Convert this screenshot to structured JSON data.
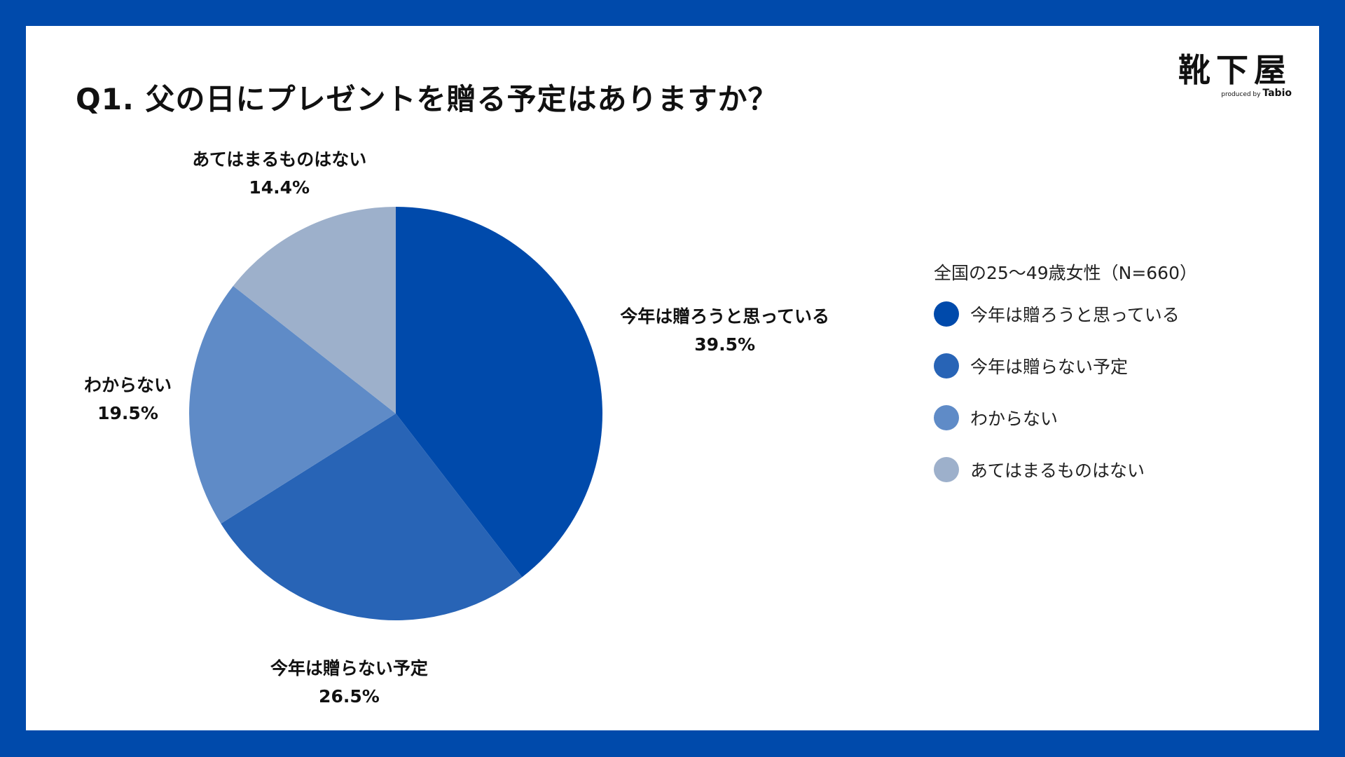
{
  "title": "Q1. 父の日にプレゼントを贈る予定はありますか？",
  "logo": {
    "main": "靴下屋",
    "sub_prefix": "produced by",
    "sub_brand": "Tabio"
  },
  "chart_data": {
    "type": "pie",
    "title": "Q1. 父の日にプレゼントを贈る予定はありますか？",
    "subtitle": "全国の25〜49歳女性（N=660）",
    "unit": "%",
    "slices": [
      {
        "label": "今年は贈ろうと思っている",
        "value": 39.5,
        "value_label": "39.5%",
        "color": "#004aab"
      },
      {
        "label": "今年は贈らない予定",
        "value": 26.5,
        "value_label": "26.5%",
        "color": "#2864b6"
      },
      {
        "label": "わからない",
        "value": 19.5,
        "value_label": "19.5%",
        "color": "#5f8bc7"
      },
      {
        "label": "あてはまるものはない",
        "value": 14.4,
        "value_label": "14.4%",
        "color": "#9db0cb"
      }
    ],
    "legend_position": "right"
  },
  "legend": {
    "title": "全国の25〜49歳女性（N=660）"
  }
}
